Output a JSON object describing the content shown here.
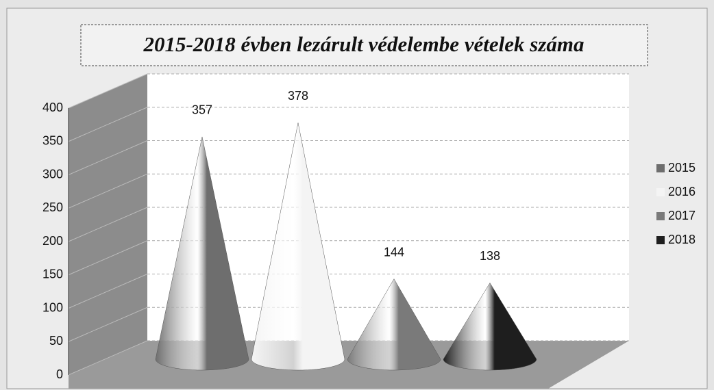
{
  "chart_data": {
    "type": "cone",
    "title": "2015-2018 évben lezárult védelembe vételek száma",
    "categories": [
      null
    ],
    "series": [
      {
        "name": "2015",
        "color": "#6e6e6e",
        "values": [
          357
        ]
      },
      {
        "name": "2016",
        "color": "#f4f4f4",
        "values": [
          378
        ]
      },
      {
        "name": "2017",
        "color": "#7a7a7a",
        "values": [
          144
        ]
      },
      {
        "name": "2018",
        "color": "#1e1e1e",
        "values": [
          138
        ]
      }
    ],
    "ylim": [
      0,
      400
    ],
    "yticks": [
      0,
      50,
      100,
      150,
      200,
      250,
      300,
      350,
      400
    ],
    "grid": true,
    "legend": "right"
  }
}
